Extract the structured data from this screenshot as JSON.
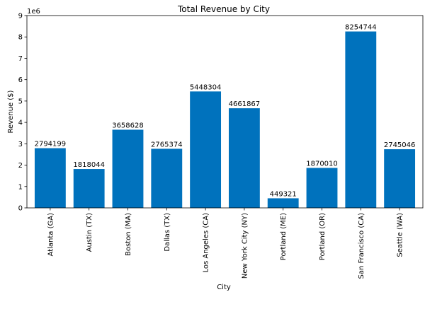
{
  "chart_data": {
    "type": "bar",
    "title": "Total Revenue by City",
    "xlabel": "City",
    "ylabel": "Revenue ($)",
    "y_offset_label": "1e6",
    "y_scale": 1000000,
    "ylim": [
      0,
      9000000
    ],
    "yticks": [
      0,
      1,
      2,
      3,
      4,
      5,
      6,
      7,
      8,
      9
    ],
    "grid": false,
    "bar_color": "#0072bd",
    "categories": [
      "Atlanta (GA)",
      "Austin (TX)",
      "Boston (MA)",
      "Dallas (TX)",
      "Los Angeles (CA)",
      "New York City (NY)",
      "Portland (ME)",
      "Portland (OR)",
      "San Francisco (CA)",
      "Seattle (WA)"
    ],
    "values": [
      2794199,
      1818044,
      3658628,
      2765374,
      5448304,
      4661867,
      449321,
      1870010,
      8254744,
      2745046
    ],
    "data_labels": [
      "2794199",
      "1818044",
      "3658628",
      "2765374",
      "5448304",
      "4661867",
      "449321",
      "1870010",
      "8254744",
      "2745046"
    ]
  }
}
